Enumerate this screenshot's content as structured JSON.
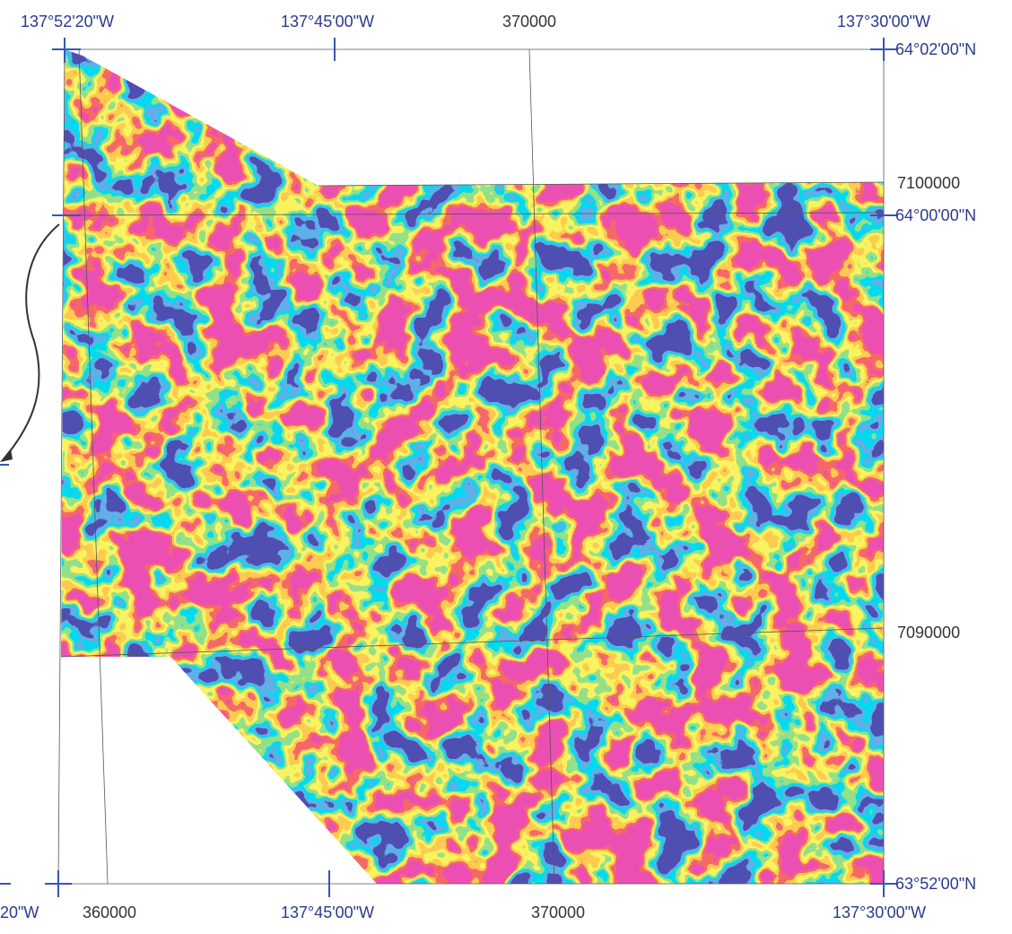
{
  "top_labels": [
    "137°52'20\"W",
    "137°45'00\"W",
    "370000",
    "137°30'00\"W"
  ],
  "right_labels": [
    "64°02'00\"N",
    "7100000",
    "64°00'00\"N",
    "7090000",
    "63°52'00\"N"
  ],
  "bottom_labels": [
    "20\"W",
    "360000",
    "137°45'00\"W",
    "370000",
    "137°30'00\"W"
  ]
}
